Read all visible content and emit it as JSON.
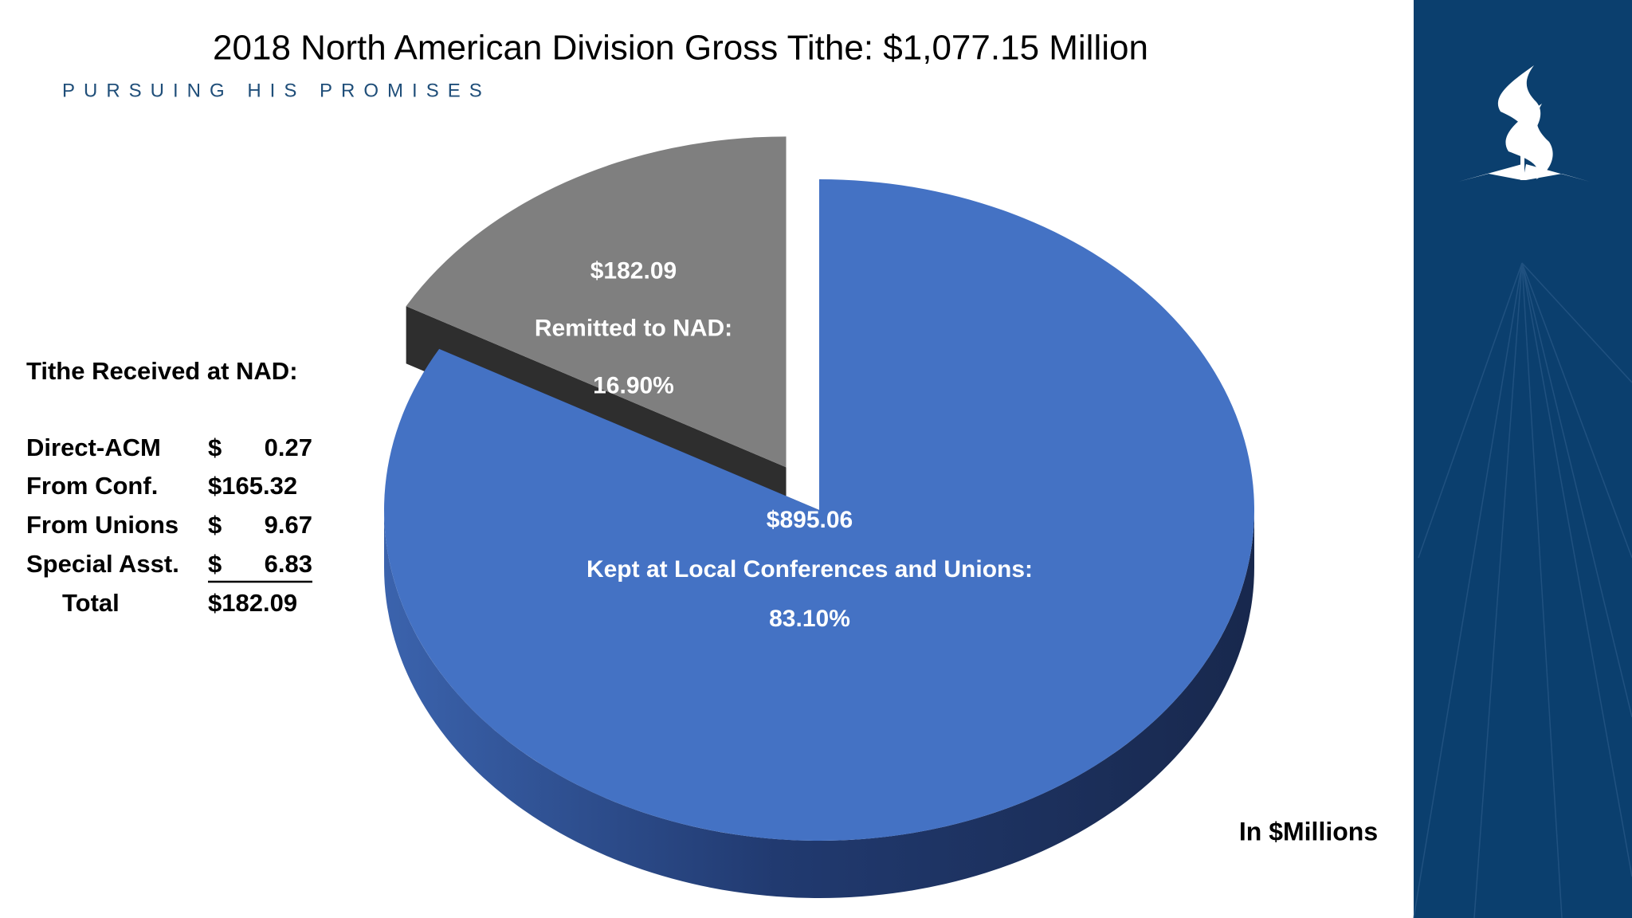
{
  "chart_data": {
    "type": "pie",
    "title": "2018 North American Division Gross Tithe:  $1,077.15 Million",
    "subtitle": "PURSUING HIS PROMISES",
    "categories": [
      "Kept at Local Conferences and Unions:",
      "Remitted to NAD:"
    ],
    "values": [
      895.06,
      182.09
    ],
    "value_labels": [
      "$895.06",
      "$182.09"
    ],
    "percents": [
      83.1,
      16.9
    ],
    "percent_labels": [
      "83.10%",
      "16.90%"
    ],
    "colors": [
      "#4472c4",
      "#7f7f7f"
    ],
    "dark_colors": [
      "#1f3566",
      "#2e2e2e"
    ],
    "exploded": [
      false,
      true
    ],
    "annotation": "In $Millions"
  },
  "side_table": {
    "title": "Tithe Received at NAD:",
    "rows": [
      {
        "label": "Direct-ACM",
        "currency": "$",
        "amount": "0.27"
      },
      {
        "label": "From Conf.",
        "amount": "$165.32"
      },
      {
        "label": "From Unions",
        "currency": "$",
        "amount": "9.67"
      },
      {
        "label": "Special Asst.",
        "currency": "$",
        "amount": "6.83",
        "underlined": true
      },
      {
        "label": "Total",
        "amount": "$182.09",
        "indent": true
      }
    ]
  }
}
